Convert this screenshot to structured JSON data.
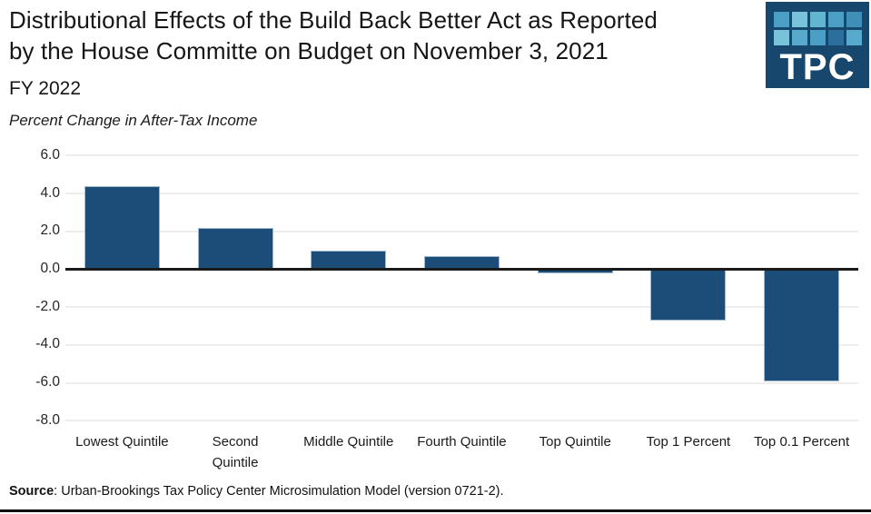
{
  "header": {
    "title_line1": "Distributional Effects of the Build Back Better Act as Reported",
    "title_line2": "by the House Committe on Budget on November 3, 2021",
    "subtitle": "FY 2022",
    "axis_note": "Percent Change in After-Tax Income"
  },
  "logo": {
    "text": "TPC",
    "background": "#17476D",
    "squares": [
      "#4C9FC4",
      "#79C3DA",
      "#62B5D1",
      "#4C9FC4",
      "#3F8FB7",
      "#79C3DA",
      "#57AACB",
      "#4C9FC4",
      "#2C6F9E",
      "#57AACB"
    ]
  },
  "chart_data": {
    "type": "bar",
    "title": "Distributional Effects of the Build Back Better Act as Reported by the House Committe on Budget on November 3, 2021",
    "subtitle": "FY 2022",
    "ylabel": "Percent Change in After-Tax Income",
    "xlabel": "",
    "categories": [
      "Lowest Quintile",
      "Second\nQuintile",
      "Middle Quintile",
      "Fourth Quintile",
      "Top Quintile",
      "Top 1 Percent",
      "Top 0.1 Percent"
    ],
    "values": [
      4.4,
      2.2,
      1.0,
      0.7,
      -0.2,
      -2.7,
      -5.9
    ],
    "ylim": [
      -8.0,
      6.0
    ],
    "yticks": [
      6.0,
      4.0,
      2.0,
      0.0,
      -2.0,
      -4.0,
      -6.0,
      -8.0
    ],
    "grid": true,
    "legend": false,
    "bar_color": "#1C4C78",
    "bar_border_color": "#9FB9CE",
    "gridline_color": "#EDEDED",
    "zeroline_color": "#1A1A1A"
  },
  "source": {
    "label": "Source",
    "text": ": Urban-Brookings Tax Policy Center Microsimulation Model (version 0721-2)."
  }
}
